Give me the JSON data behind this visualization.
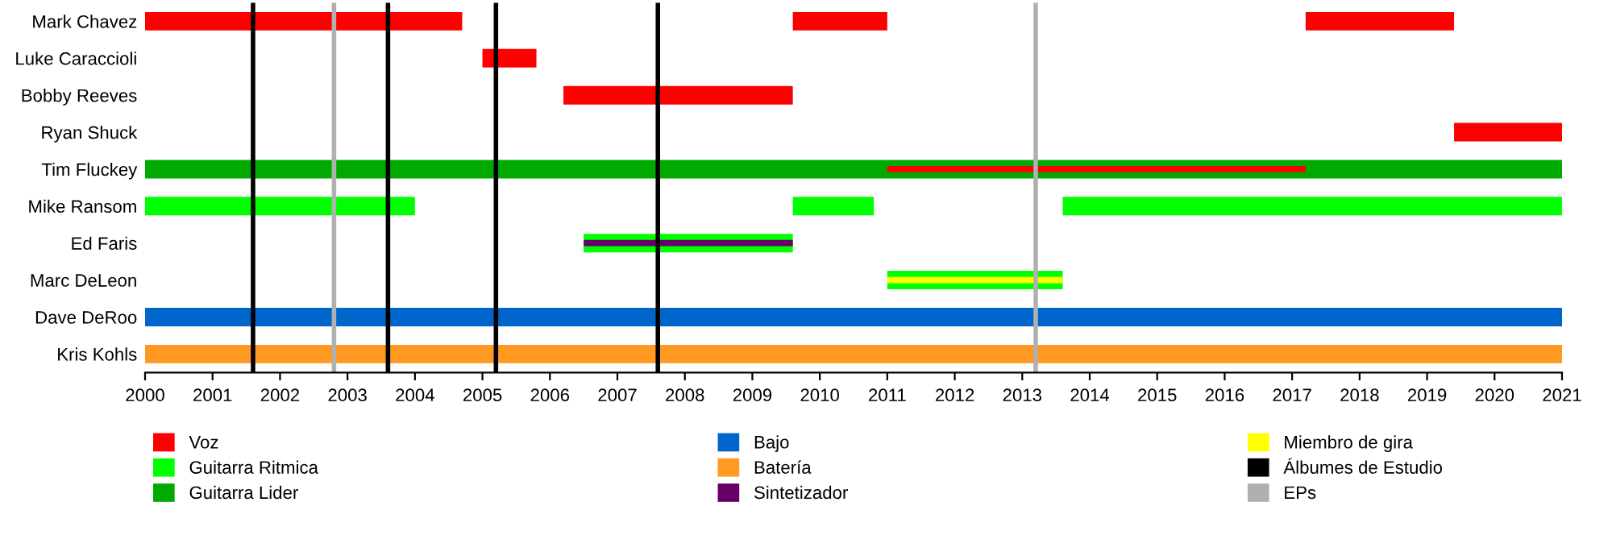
{
  "chart_data": {
    "type": "bar",
    "orientation": "horizontal",
    "categories": [
      "Mark Chavez",
      "Luke Caraccioli",
      "Bobby Reeves",
      "Ryan Shuck",
      "Tim Fluckey",
      "Mike Ransom",
      "Ed Faris",
      "Marc DeLeon",
      "Dave DeRoo",
      "Kris Kohls"
    ],
    "series": [
      {
        "name": "Voz",
        "color": "#ff0000",
        "values": [
          4.7,
          0.8,
          3.4,
          1.6,
          null,
          null,
          null,
          null,
          null,
          null
        ],
        "base": [
          2000,
          2005.0,
          2006.2,
          2019.4,
          null,
          null,
          null,
          null,
          null,
          null
        ]
      },
      {
        "color": "#ff0000",
        "values": [
          1.4,
          null,
          null,
          null,
          null,
          null,
          null,
          null,
          null,
          null
        ],
        "base": [
          2009.6,
          null,
          null,
          null,
          null,
          null,
          null,
          null,
          null,
          null
        ]
      },
      {
        "color": "#ff0000",
        "values": [
          2.2,
          null,
          null,
          null,
          null,
          null,
          null,
          null,
          null,
          null
        ],
        "base": [
          2017.2,
          null,
          null,
          null,
          null,
          null,
          null,
          null,
          null,
          null
        ]
      },
      {
        "name": "Guitarra Ritmica",
        "color": "#00ff00",
        "values": [
          null,
          null,
          null,
          null,
          null,
          4.0,
          3.1,
          2.6,
          null,
          null
        ],
        "base": [
          null,
          null,
          null,
          null,
          null,
          2000,
          2006.5,
          2011.0,
          null,
          null
        ]
      },
      {
        "color": "#00ff00",
        "values": [
          null,
          null,
          null,
          null,
          null,
          1.2,
          null,
          null,
          null,
          null
        ],
        "base": [
          null,
          null,
          null,
          null,
          null,
          2009.6,
          null,
          null,
          null,
          null
        ]
      },
      {
        "color": "#00ff00",
        "values": [
          null,
          null,
          null,
          null,
          null,
          7.4,
          null,
          null,
          null,
          null
        ],
        "base": [
          null,
          null,
          null,
          null,
          null,
          2013.6,
          null,
          null,
          null,
          null
        ]
      },
      {
        "name": "Guitarra Lider",
        "color": "#00aa00",
        "values": [
          null,
          null,
          null,
          null,
          21,
          null,
          null,
          null,
          null,
          null
        ],
        "base": [
          null,
          null,
          null,
          null,
          2000,
          null,
          null,
          null,
          null,
          null
        ]
      },
      {
        "name": "Bajo",
        "color": "#0066cc",
        "values": [
          null,
          null,
          null,
          null,
          null,
          null,
          null,
          null,
          21,
          null
        ],
        "base": [
          null,
          null,
          null,
          null,
          null,
          null,
          null,
          null,
          2000,
          null
        ]
      },
      {
        "name": "Batería",
        "color": "#ff9922",
        "values": [
          null,
          null,
          null,
          null,
          null,
          null,
          null,
          null,
          null,
          21
        ],
        "base": [
          null,
          null,
          null,
          null,
          null,
          null,
          null,
          null,
          null,
          2000
        ]
      },
      {
        "color": "#ff0000",
        "values": [
          null,
          null,
          null,
          null,
          6.2,
          null,
          null,
          null,
          null,
          null
        ],
        "base": [
          null,
          null,
          null,
          null,
          2011.0,
          null,
          null,
          null,
          null,
          null
        ]
      },
      {
        "name": "Sintetizador",
        "color": "#660066",
        "values": [
          null,
          null,
          null,
          null,
          null,
          null,
          3.1,
          null,
          null,
          null
        ],
        "base": [
          null,
          null,
          null,
          null,
          null,
          null,
          2006.5,
          null,
          null,
          null
        ]
      },
      {
        "name": "Miembro de gira",
        "color": "#ffff00",
        "values": [
          null,
          null,
          null,
          null,
          null,
          null,
          null,
          2.6,
          null,
          null
        ],
        "base": [
          null,
          null,
          null,
          null,
          null,
          null,
          null,
          2011.0,
          null,
          null
        ]
      }
    ],
    "ref_lines": [
      {
        "axis": "x",
        "value": 2001.6,
        "label": "Álbumes de Estudio",
        "color": "#000000"
      },
      {
        "axis": "x",
        "value": 2003.6,
        "color": "#000000"
      },
      {
        "axis": "x",
        "value": 2005.2,
        "color": "#000000"
      },
      {
        "axis": "x",
        "value": 2007.6,
        "color": "#000000"
      },
      {
        "axis": "x",
        "value": 2002.8,
        "label": "EPs",
        "color": "#b0b0b0"
      },
      {
        "axis": "x",
        "value": 2013.2,
        "color": "#b0b0b0"
      }
    ],
    "xlim": [
      2000,
      2021
    ],
    "xticks": [
      2000,
      2001,
      2002,
      2003,
      2004,
      2005,
      2006,
      2007,
      2008,
      2009,
      2010,
      2011,
      2012,
      2013,
      2014,
      2015,
      2016,
      2017,
      2018,
      2019,
      2020,
      2021
    ],
    "legend": "bottom",
    "grid": false
  }
}
